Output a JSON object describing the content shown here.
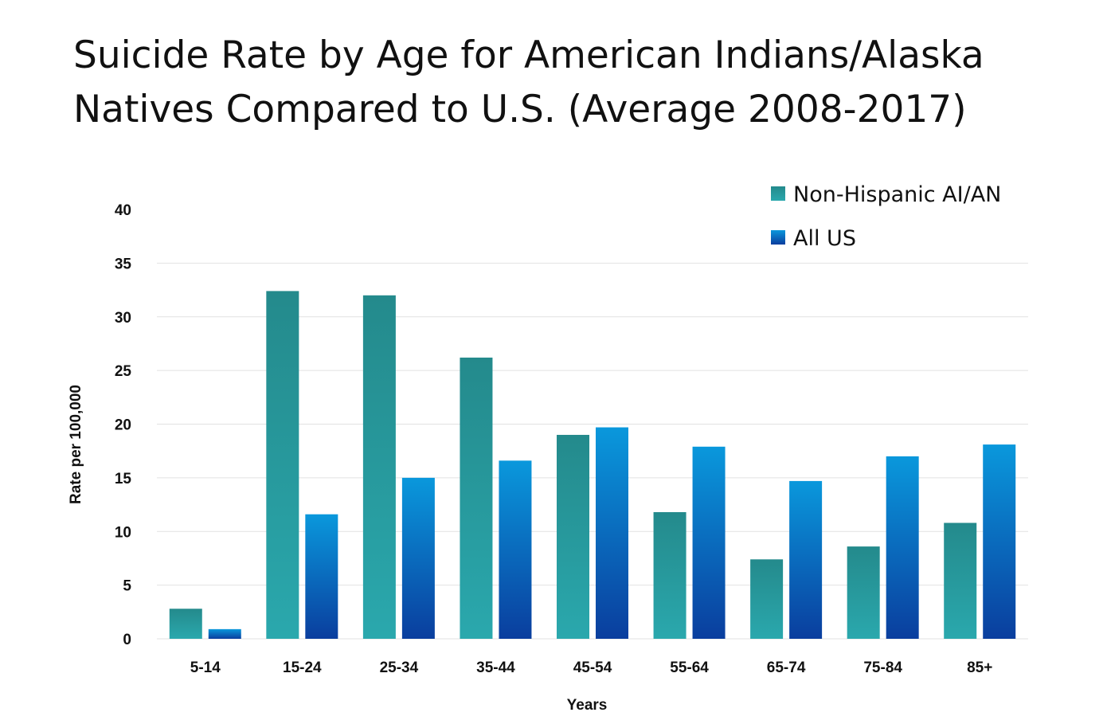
{
  "chart_data": {
    "type": "bar",
    "title_lines": [
      "Suicide Rate by Age for American Indians/Alaska",
      "Natives Compared to U.S. (Average 2008-2017)"
    ],
    "title": "Suicide Rate by Age for American Indians/Alaska Natives Compared to U.S. (Average 2008-2017)",
    "xlabel": "Years",
    "ylabel": "Rate per 100,000",
    "ylim": [
      0,
      40
    ],
    "yticks": [
      0,
      5,
      10,
      15,
      20,
      25,
      30,
      35,
      40
    ],
    "grid": true,
    "legend_position": "top-right",
    "categories": [
      "5-14",
      "15-24",
      "25-34",
      "35-44",
      "45-54",
      "55-64",
      "65-74",
      "75-84",
      "85+"
    ],
    "series": [
      {
        "name": "Non-Hispanic AI/AN",
        "values": [
          2.8,
          32.4,
          32.0,
          26.2,
          19.0,
          11.8,
          7.4,
          8.6,
          10.8
        ],
        "color_top": "#248a8c",
        "color_bottom": "#2aa8ad"
      },
      {
        "name": "All US",
        "values": [
          0.9,
          11.6,
          15.0,
          16.6,
          19.7,
          17.9,
          14.7,
          17.0,
          18.1
        ],
        "color_top": "#0a98dc",
        "color_bottom": "#0a3e9e"
      }
    ],
    "gridline_color": "#e2e2e2"
  }
}
